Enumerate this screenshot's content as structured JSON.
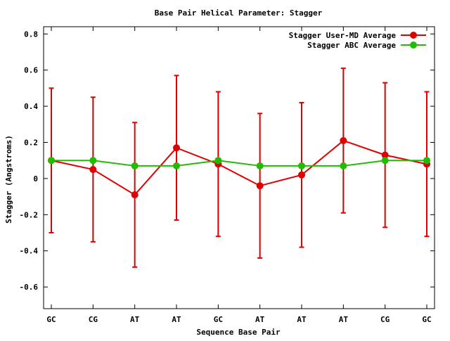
{
  "chart_data": {
    "type": "line",
    "title": "Base Pair Helical Parameter: Stagger",
    "xlabel": "Sequence Base Pair",
    "ylabel": "Stagger (Angstroms)",
    "categories": [
      "GC",
      "CG",
      "AT",
      "AT",
      "GC",
      "AT",
      "AT",
      "AT",
      "CG",
      "GC"
    ],
    "ylim": [
      -0.72,
      0.84
    ],
    "yticks": [
      -0.6,
      -0.4,
      -0.2,
      0,
      0.2,
      0.4,
      0.6,
      0.8
    ],
    "ytick_labels": [
      "-0.6",
      "-0.4",
      "-0.2",
      "0",
      "0.2",
      "0.4",
      "0.6",
      "0.8"
    ],
    "grid": false,
    "legend_position": "top-right",
    "series": [
      {
        "name": "Stagger User-MD Average",
        "color": "#e00000",
        "values": [
          0.1,
          0.05,
          -0.09,
          0.17,
          0.08,
          -0.04,
          0.02,
          0.21,
          0.13,
          0.08
        ],
        "error_low": [
          -0.3,
          -0.35,
          -0.49,
          -0.23,
          -0.32,
          -0.44,
          -0.38,
          -0.19,
          -0.27,
          -0.32
        ],
        "error_high": [
          0.5,
          0.45,
          0.31,
          0.57,
          0.48,
          0.36,
          0.42,
          0.61,
          0.53,
          0.48
        ]
      },
      {
        "name": "Stagger ABC Average",
        "color": "#22bb00",
        "values": [
          0.1,
          0.1,
          0.07,
          0.07,
          0.1,
          0.07,
          0.07,
          0.07,
          0.1,
          0.1
        ]
      }
    ]
  }
}
